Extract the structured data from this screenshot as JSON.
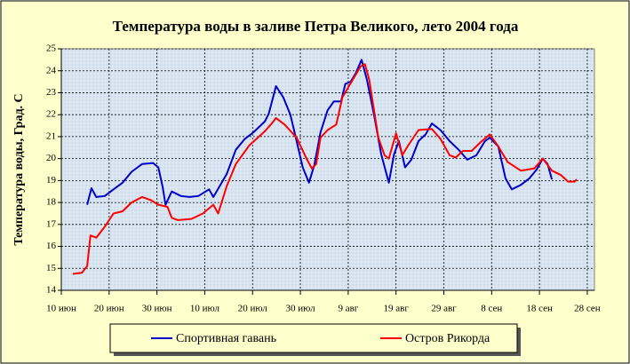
{
  "chart_data": {
    "type": "line",
    "title": "Температура воды в заливе Петра Великого,  лето 2004 года",
    "ylabel": "Температура воды, Град. С",
    "xlim": [
      162,
      273.5
    ],
    "ylim": [
      14,
      25
    ],
    "yticks": [
      14,
      15,
      16,
      17,
      18,
      19,
      20,
      21,
      22,
      23,
      24,
      25
    ],
    "xticks": [
      {
        "value": 162,
        "label": "10 июн"
      },
      {
        "value": 172,
        "label": "20 июн"
      },
      {
        "value": 182,
        "label": "30 июн"
      },
      {
        "value": 192,
        "label": "10 июл"
      },
      {
        "value": 202,
        "label": "20 июл"
      },
      {
        "value": 212,
        "label": "30 июл"
      },
      {
        "value": 222,
        "label": "9 авг"
      },
      {
        "value": 232,
        "label": "19 авг"
      },
      {
        "value": 242,
        "label": "29 авг"
      },
      {
        "value": 252,
        "label": "8 сен"
      },
      {
        "value": 262,
        "label": "18 сен"
      },
      {
        "value": 272,
        "label": "28 сен"
      }
    ],
    "grid": true,
    "series": [
      {
        "name": "Спортивная гавань",
        "color": "#0000cc",
        "x": [
          167.4,
          168.3,
          169.3,
          171.1,
          172.9,
          174.8,
          176.7,
          178.9,
          181.2,
          182.3,
          183.2,
          183.8,
          185.1,
          187,
          188.8,
          190.7,
          192.9,
          193.8,
          195,
          196.6,
          198.5,
          200.4,
          202.2,
          204.6,
          205.4,
          206.9,
          208.4,
          209.9,
          211.2,
          212.5,
          213.8,
          214.9,
          216.2,
          217.7,
          219,
          220.5,
          221.4,
          222.5,
          223.6,
          224.8,
          225.9,
          227.4,
          228.9,
          230.5,
          231.6,
          232.6,
          233.9,
          235.2,
          236.7,
          238.2,
          239.5,
          241.3,
          243.2,
          245.1,
          246.9,
          248.8,
          250.6,
          251.6,
          253.4,
          254.9,
          256.2,
          258.1,
          259.9,
          261.4,
          262.7,
          263.7,
          264.6
        ],
        "values": [
          17.9,
          18.65,
          18.25,
          18.3,
          18.6,
          18.9,
          19.4,
          19.75,
          19.8,
          19.6,
          18.7,
          17.9,
          18.5,
          18.3,
          18.25,
          18.3,
          18.6,
          18.25,
          18.7,
          19.3,
          20.4,
          20.9,
          21.2,
          21.7,
          22.05,
          23.3,
          22.8,
          22.0,
          20.8,
          19.6,
          18.9,
          19.7,
          21.2,
          22.2,
          22.6,
          22.6,
          23.4,
          23.5,
          23.9,
          24.5,
          23.6,
          22.0,
          20.2,
          18.9,
          20.2,
          20.8,
          19.6,
          19.95,
          20.8,
          21.1,
          21.6,
          21.3,
          20.8,
          20.4,
          19.95,
          20.15,
          20.8,
          20.95,
          20.55,
          19.1,
          18.6,
          18.8,
          19.1,
          19.5,
          20.0,
          19.75,
          19.05
        ]
      },
      {
        "name": "Остров Рикорда",
        "color": "#ff0000",
        "x": [
          164.4,
          166.3,
          167.4,
          168.1,
          169.3,
          171.1,
          172.9,
          174.8,
          176.7,
          178.9,
          180.8,
          182.3,
          184.2,
          185.1,
          186.4,
          189.2,
          191.6,
          193.8,
          194.8,
          196.6,
          198.5,
          201.3,
          204.6,
          206,
          206.9,
          208.7,
          211.2,
          213.4,
          214.4,
          215.3,
          216.2,
          217.7,
          219.5,
          220.8,
          222.7,
          224.6,
          225.5,
          226.4,
          228.3,
          229.6,
          230.5,
          232,
          233.3,
          234.4,
          236.7,
          239.5,
          241.3,
          243.2,
          244.5,
          246,
          247.8,
          249.7,
          251.6,
          253.4,
          255.3,
          258.1,
          260.9,
          262.7,
          264.6,
          266.5,
          268,
          269.3,
          269.8
        ],
        "values": [
          14.75,
          14.8,
          15.1,
          16.5,
          16.4,
          16.9,
          17.5,
          17.6,
          18.0,
          18.25,
          18.1,
          17.9,
          17.8,
          17.3,
          17.2,
          17.25,
          17.5,
          17.9,
          17.5,
          18.75,
          19.75,
          20.6,
          21.25,
          21.6,
          21.85,
          21.55,
          20.95,
          19.95,
          19.55,
          19.75,
          20.95,
          21.3,
          21.55,
          22.8,
          23.5,
          24.2,
          24.3,
          23.6,
          20.95,
          20.15,
          20.0,
          21.15,
          20.15,
          20.55,
          21.3,
          21.35,
          20.9,
          20.15,
          20.05,
          20.35,
          20.35,
          20.75,
          21.1,
          20.55,
          19.85,
          19.45,
          19.55,
          20.0,
          19.45,
          19.25,
          18.95,
          18.95,
          19.05
        ]
      }
    ]
  }
}
